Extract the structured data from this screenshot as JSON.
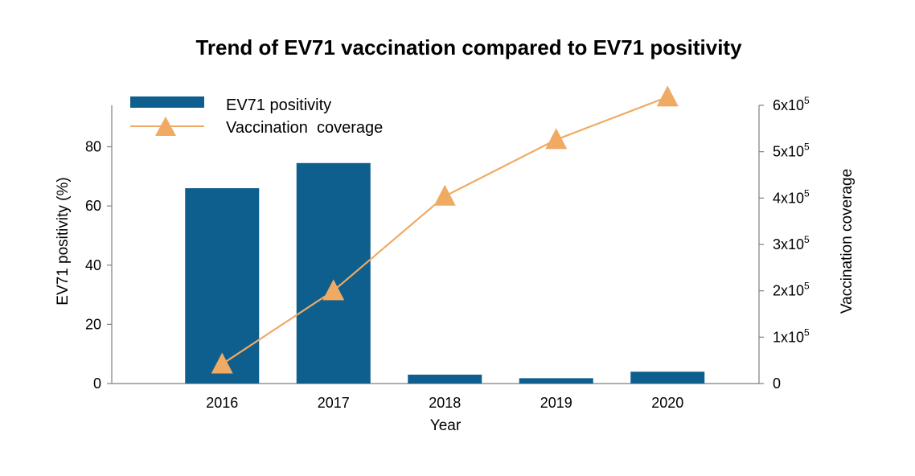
{
  "chart_data": {
    "type": "bar+line",
    "title": "Trend of EV71 vaccination compared to EV71 positivity",
    "xlabel": "Year",
    "categories": [
      "2016",
      "2017",
      "2018",
      "2019",
      "2020"
    ],
    "bar_series": {
      "name": "EV71 positivity",
      "axis": "left",
      "color": "#0e5f8e",
      "values": [
        66,
        74.5,
        3,
        1.8,
        4
      ]
    },
    "line_series": {
      "name": "Vaccination  coverage",
      "axis": "right",
      "color": "#f0aa64",
      "marker": "triangle",
      "values": [
        42000,
        200000,
        404000,
        526000,
        618000
      ]
    },
    "y_left": {
      "label": "EV71 positivity (%)",
      "ylim": [
        0,
        94
      ],
      "ticks": [
        0,
        20,
        40,
        60,
        80
      ],
      "tick_labels": [
        "0",
        "20",
        "40",
        "60",
        "80"
      ]
    },
    "y_right": {
      "label": "Vaccination coverage",
      "ylim": [
        0,
        600000
      ],
      "ticks": [
        0,
        100000,
        200000,
        300000,
        400000,
        500000,
        600000
      ],
      "tick_labels": [
        {
          "base": "0",
          "sup": ""
        },
        {
          "base": "1x10",
          "sup": "5"
        },
        {
          "base": "2x10",
          "sup": "5"
        },
        {
          "base": "3x10",
          "sup": "5"
        },
        {
          "base": "4x10",
          "sup": "5"
        },
        {
          "base": "5x10",
          "sup": "5"
        },
        {
          "base": "6x10",
          "sup": "5"
        }
      ]
    },
    "legend": {
      "position": "top-left",
      "entries": [
        "EV71 positivity",
        "Vaccination  coverage"
      ]
    }
  }
}
